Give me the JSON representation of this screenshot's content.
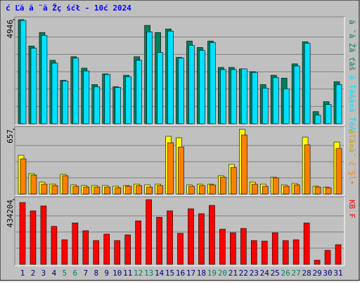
{
  "chart_data": {
    "type": "bar",
    "title": "ć Ľă  ă ¨ă Žç śćł  - 10ć   2024",
    "categories": [
      "1",
      "2",
      "3",
      "4",
      "5",
      "6",
      "7",
      "8",
      "9",
      "10",
      "11",
      "12",
      "13",
      "14",
      "15",
      "16",
      "17",
      "18",
      "19",
      "20",
      "21",
      "22",
      "23",
      "24",
      "25",
      "26",
      "27",
      "28",
      "29",
      "30",
      "31"
    ],
    "category_colors": [
      "#000080",
      "#000080",
      "#000080",
      "#000080",
      "#00805c",
      "#00805c",
      "#000080",
      "#000080",
      "#000080",
      "#000080",
      "#000080",
      "#00805c",
      "#00805c",
      "#000080",
      "#000080",
      "#000080",
      "#000080",
      "#000080",
      "#00805c",
      "#00805c",
      "#000080",
      "#000080",
      "#000080",
      "#000080",
      "#000080",
      "#00805c",
      "#00805c",
      "#000080",
      "#000080",
      "#000080",
      "#000080"
    ],
    "panels": [
      {
        "ylim": [
          0,
          4946
        ],
        "yticks": [
          4946
        ],
        "grid": true,
        "series": [
          {
            "name": "ă ˘ă Żă ťăš",
            "color": "#00805c",
            "values": [
              4946,
              3693,
              4336,
              3015,
              2066,
              3184,
              2642,
              1863,
              2371,
              1762,
              2304,
              3184,
              4675,
              4336,
              4506,
              3150,
              3930,
              3625,
              3930,
              2676,
              2676,
              2608,
              2473,
              1863,
              2304,
              2168,
              2846,
              3896,
              576,
              1050,
              1999
            ]
          },
          {
            "name": "ă ŤăĄă¤ă ŤéĄ",
            "color": "#00e0ff",
            "values": [
              4912,
              3591,
              4200,
              2880,
              2033,
              3117,
              2507,
              1762,
              2338,
              1728,
              2236,
              3015,
              4370,
              3388,
              4404,
              3117,
              3726,
              3489,
              3862,
              2575,
              2575,
              2608,
              2439,
              1694,
              2202,
              1660,
              2744,
              3828,
              407,
              915,
              1863
            ]
          }
        ]
      },
      {
        "ylim": [
          0,
          657
        ],
        "yticks": [
          657
        ],
        "grid": true,
        "series": [
          {
            "name": "ăľă¤ăˆ",
            "color": "#ffff00",
            "values": [
              393,
              207,
              121,
              100,
              200,
              93,
              86,
              86,
              86,
              79,
              86,
              100,
              93,
              100,
              586,
              571,
              93,
              100,
              100,
              186,
              300,
              657,
              121,
              100,
              171,
              93,
              107,
              578,
              79,
              71,
              528
            ]
          },
          {
            "name": "č¨Şĺ•",
            "color": "#ff8000",
            "values": [
              357,
              193,
              100,
              86,
              186,
              79,
              71,
              71,
              71,
              64,
              79,
              86,
              71,
              86,
              521,
              478,
              79,
              86,
              93,
              171,
              271,
              600,
              100,
              79,
              164,
              79,
              93,
              500,
              71,
              64,
              464
            ]
          }
        ]
      },
      {
        "ylim": [
          0,
          434204
        ],
        "yticks": [
          434204
        ],
        "grid": true,
        "series": [
          {
            "name": "KB F",
            "color": "#ff0000",
            "values": [
              415000,
              359000,
              392000,
              255000,
              165000,
              278000,
              226000,
              160000,
              203000,
              160000,
              198000,
              292000,
              434204,
              316000,
              359000,
              208000,
              373000,
              340000,
              396000,
              236000,
              212000,
              241000,
              160000,
              156000,
              212000,
              160000,
              165000,
              278000,
              28000,
              94000,
              132000
            ]
          }
        ]
      }
    ]
  }
}
